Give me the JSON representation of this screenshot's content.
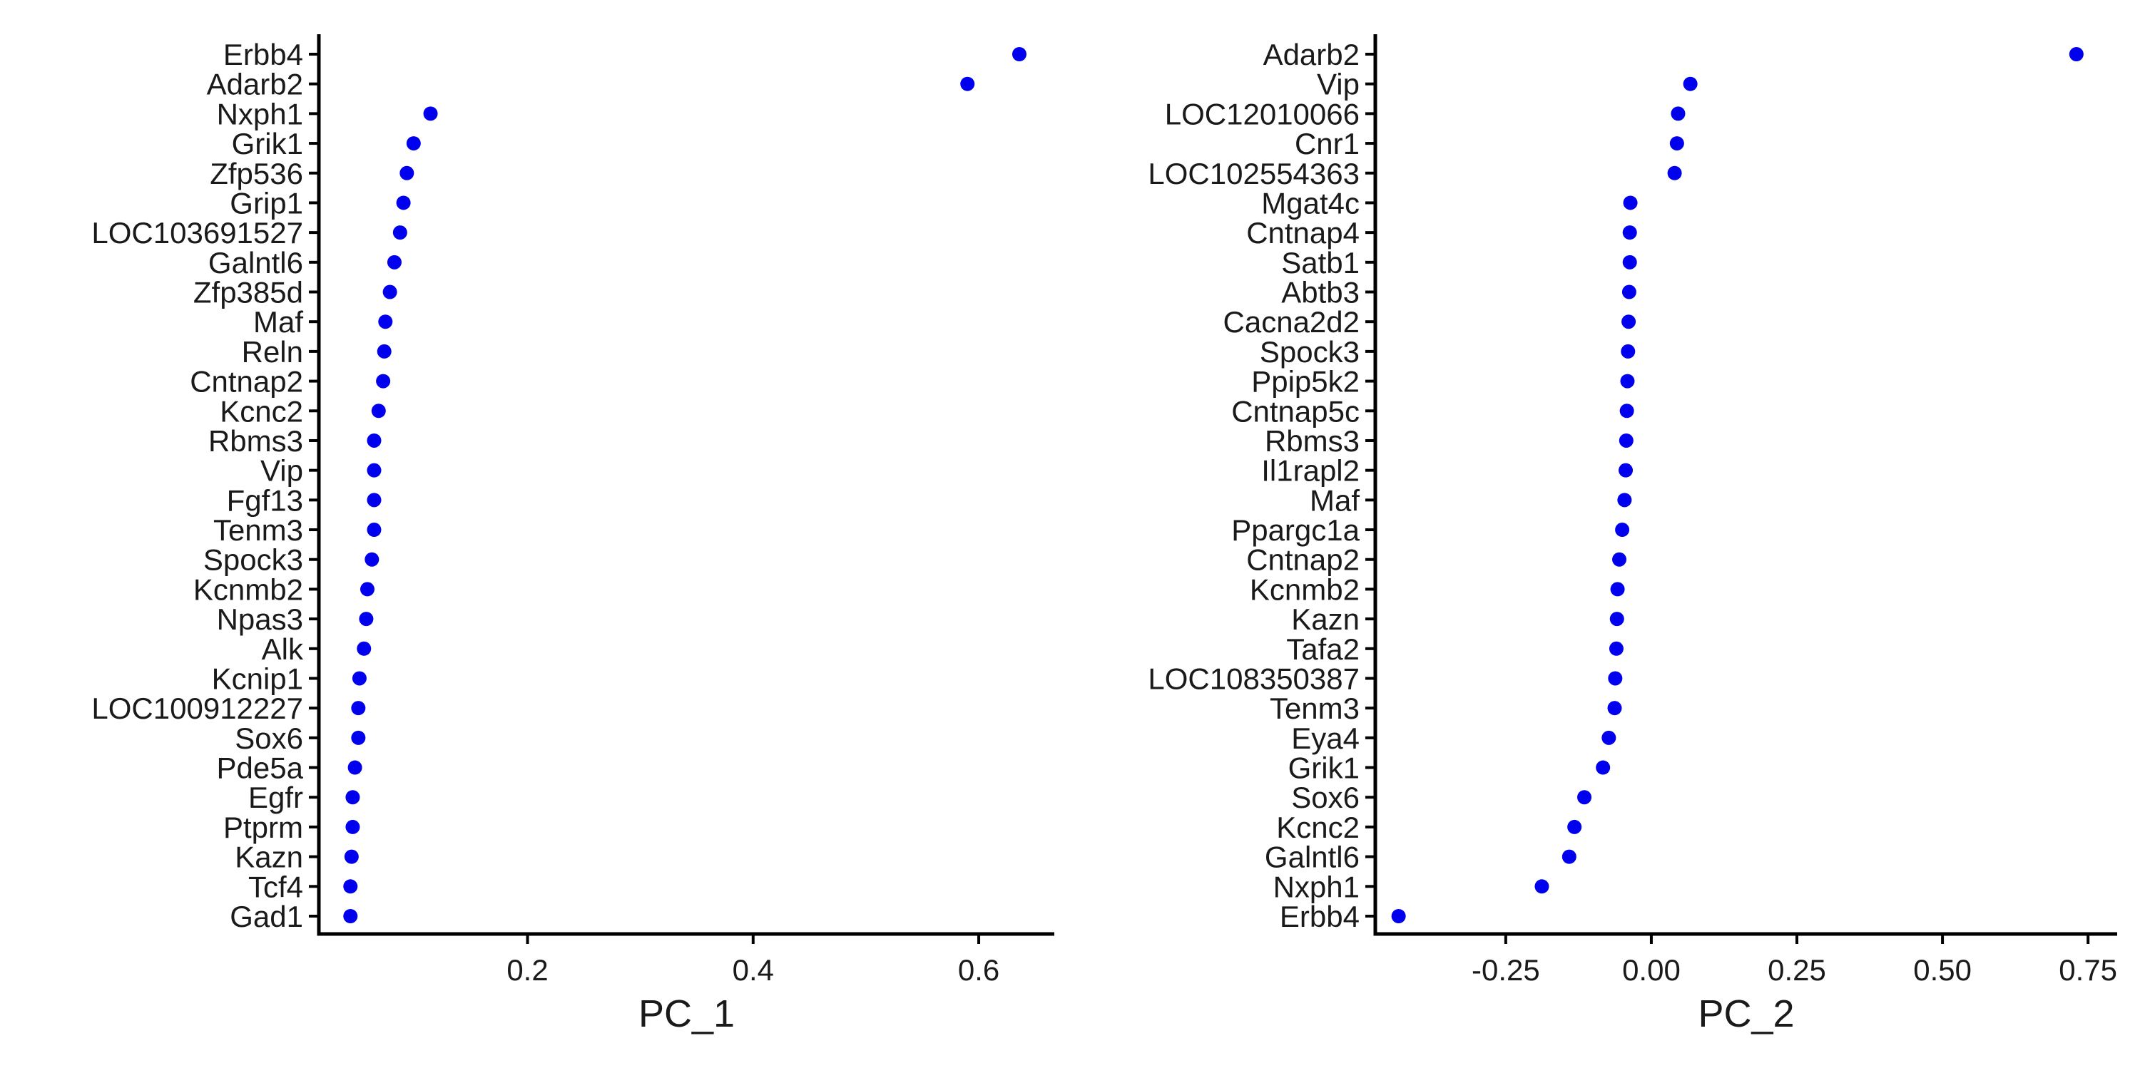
{
  "chart_data": [
    {
      "type": "scatter",
      "xlabel": "PC_1",
      "ylabel": "",
      "xlim": [
        0.015,
        0.667
      ],
      "xticks": [
        0.2,
        0.4,
        0.6
      ],
      "xtick_labels": [
        "0.2",
        "0.4",
        "0.6"
      ],
      "grid": false,
      "point_color": "#0000ee",
      "categories": [
        "Erbb4",
        "Adarb2",
        "Nxph1",
        "Grik1",
        "Zfp536",
        "Grip1",
        "LOC103691527",
        "Galntl6",
        "Zfp385d",
        "Maf",
        "Reln",
        "Cntnap2",
        "Kcnc2",
        "Rbms3",
        "Vip",
        "Fgf13",
        "Tenm3",
        "Spock3",
        "Kcnmb2",
        "Npas3",
        "Alk",
        "Kcnip1",
        "LOC100912227",
        "Sox6",
        "Pde5a",
        "Egfr",
        "Ptprm",
        "Kazn",
        "Tcf4",
        "Gad1"
      ],
      "values": [
        0.636,
        0.59,
        0.114,
        0.099,
        0.093,
        0.09,
        0.087,
        0.082,
        0.078,
        0.074,
        0.073,
        0.072,
        0.068,
        0.064,
        0.064,
        0.064,
        0.064,
        0.062,
        0.058,
        0.057,
        0.055,
        0.051,
        0.05,
        0.05,
        0.047,
        0.045,
        0.045,
        0.044,
        0.043,
        0.043
      ]
    },
    {
      "type": "scatter",
      "xlabel": "PC_2",
      "ylabel": "",
      "xlim": [
        -0.474,
        0.8
      ],
      "xticks": [
        -0.25,
        0.0,
        0.25,
        0.5,
        0.75
      ],
      "xtick_labels": [
        "-0.25",
        "0.00",
        "0.25",
        "0.50",
        "0.75"
      ],
      "grid": false,
      "point_color": "#0000ee",
      "categories": [
        "Adarb2",
        "Vip",
        "LOC12010066",
        "Cnr1",
        "LOC102554363",
        "Mgat4c",
        "Cntnap4",
        "Satb1",
        "Abtb3",
        "Cacna2d2",
        "Spock3",
        "Ppip5k2",
        "Cntnap5c",
        "Rbms3",
        "Il1rapl2",
        "Maf",
        "Ppargc1a",
        "Cntnap2",
        "Kcnmb2",
        "Kazn",
        "Tafa2",
        "LOC108350387",
        "Tenm3",
        "Eya4",
        "Grik1",
        "Sox6",
        "Kcnc2",
        "Galntl6",
        "Nxph1",
        "Erbb4"
      ],
      "values": [
        0.73,
        0.067,
        0.046,
        0.044,
        0.04,
        -0.036,
        -0.037,
        -0.037,
        -0.038,
        -0.039,
        -0.04,
        -0.041,
        -0.042,
        -0.043,
        -0.044,
        -0.046,
        -0.05,
        -0.055,
        -0.058,
        -0.059,
        -0.06,
        -0.062,
        -0.063,
        -0.073,
        -0.083,
        -0.115,
        -0.132,
        -0.141,
        -0.188,
        -0.434
      ]
    }
  ]
}
